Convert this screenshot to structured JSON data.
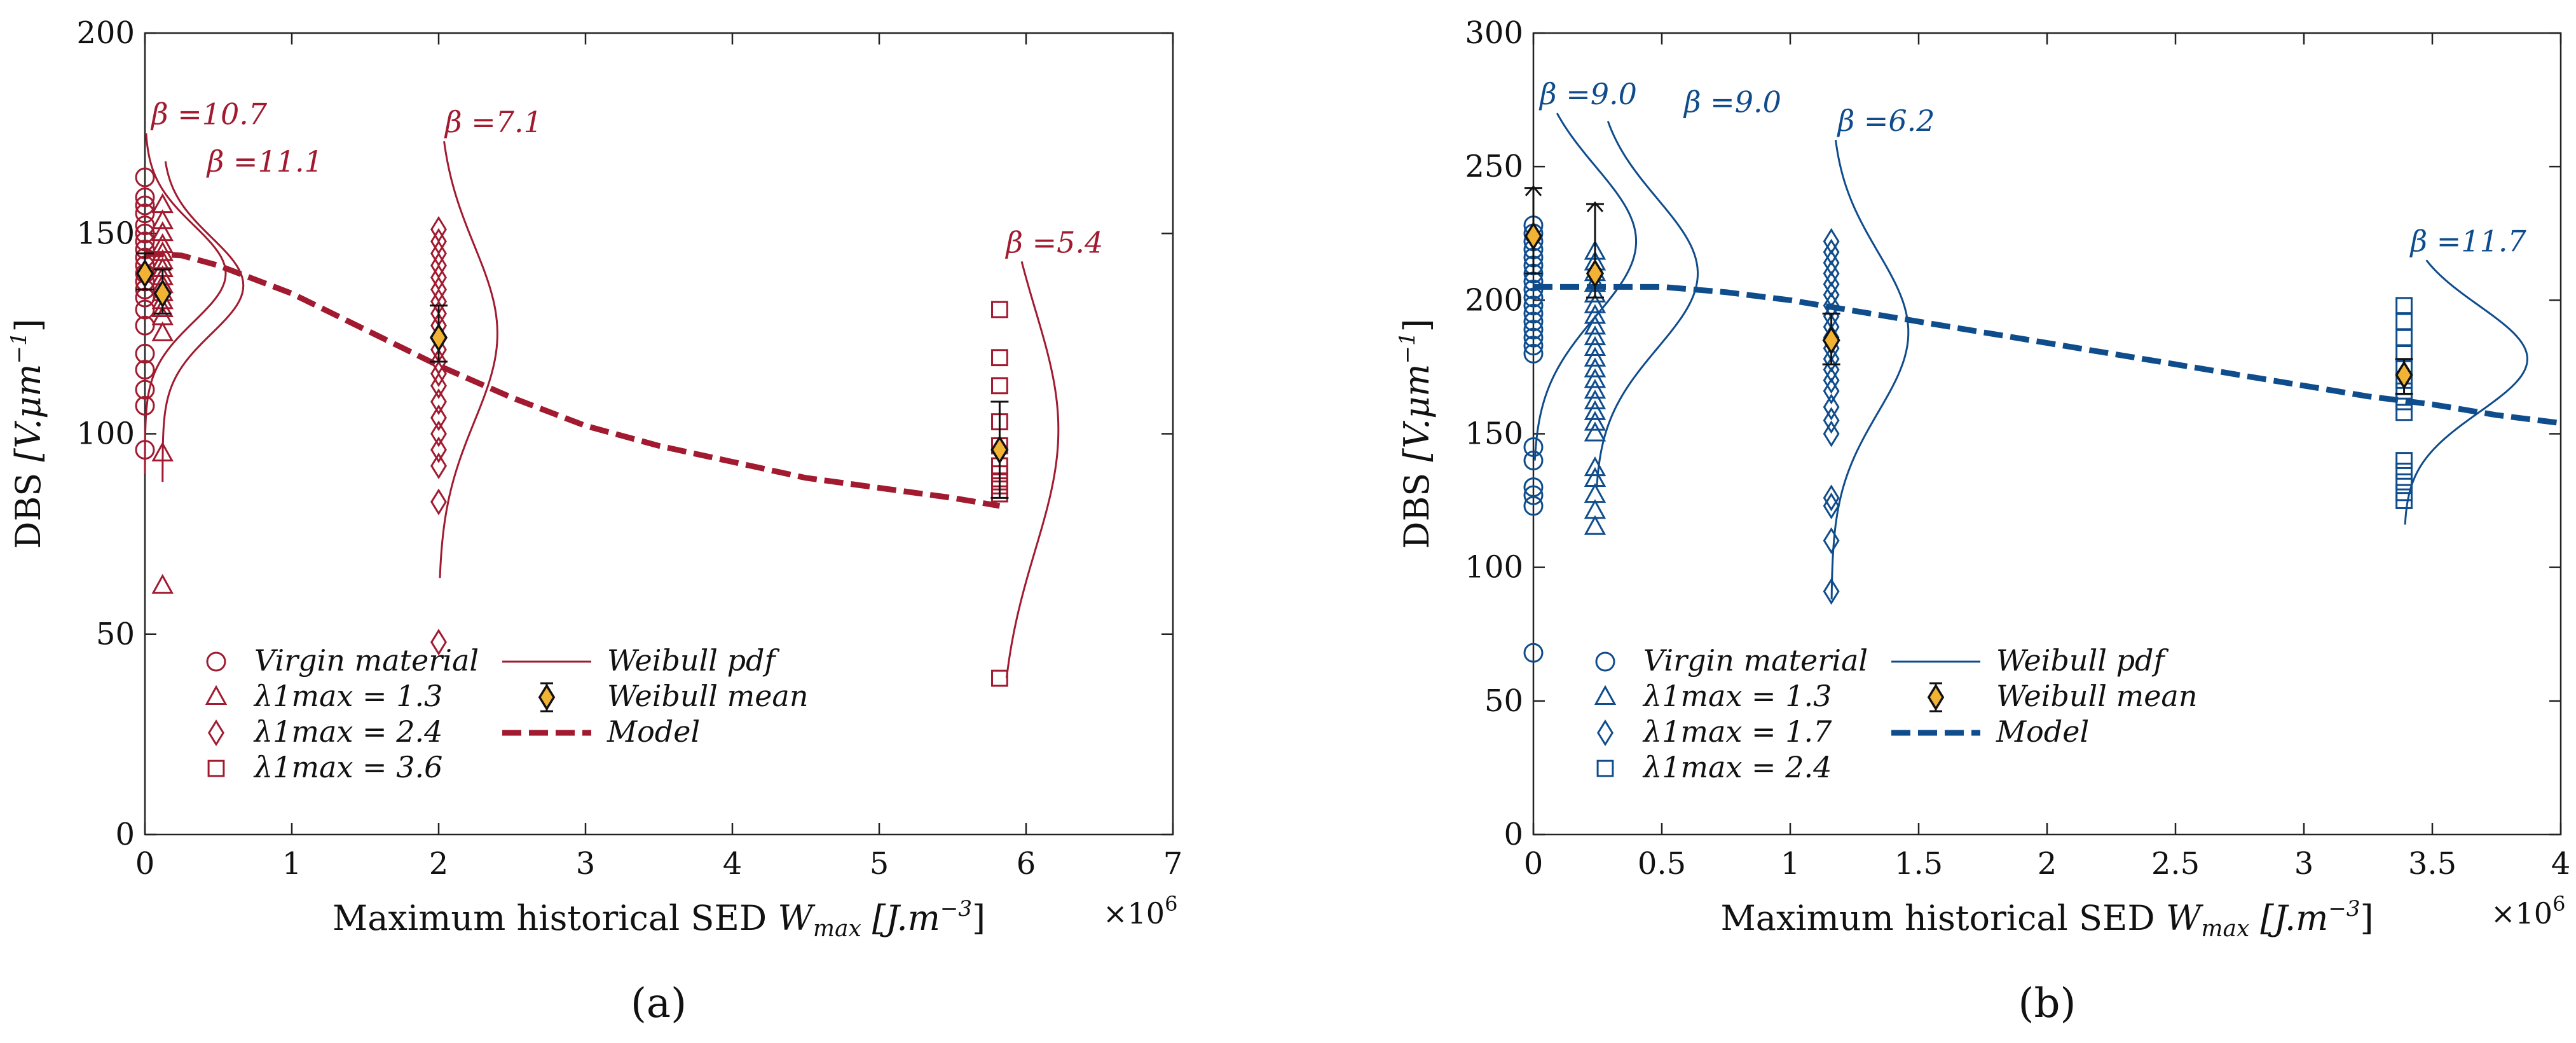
{
  "chart_data": [
    {
      "type": "scatter",
      "panel": "(a)",
      "xlabel": "Maximum historical SED",
      "xlabel_var": "W",
      "xlabel_sub": "max",
      "xlabel_unit": "[J.m",
      "xlabel_unit_exp": "−3",
      "xlabel_unit_close": "]",
      "x_multiplier": "×10",
      "x_multiplier_exp": "6",
      "ylabel": "DBS",
      "ylabel_unit": "[V.μm",
      "ylabel_unit_exp": "−1",
      "ylabel_unit_close": "]",
      "xlim": [
        0,
        7
      ],
      "ylim": [
        0,
        200
      ],
      "xticks": [
        0,
        1,
        2,
        3,
        4,
        5,
        6,
        7
      ],
      "yticks": [
        0,
        50,
        100,
        150,
        200
      ],
      "xtick_labels": [
        "0",
        "1",
        "2",
        "3",
        "4",
        "5",
        "6",
        "7"
      ],
      "ytick_labels": [
        "0",
        "50",
        "100",
        "150",
        "200"
      ],
      "grid": false,
      "color": "#a11a2f",
      "series": [
        {
          "name": "Virgin material",
          "marker": "circle",
          "x": 0,
          "values": [
            164,
            159,
            157,
            155,
            152,
            150,
            148,
            146,
            144,
            142,
            140,
            138,
            136,
            134,
            131,
            127,
            120,
            116,
            111,
            107,
            96
          ]
        },
        {
          "name": "λ1max = 1.3",
          "marker": "triangle",
          "x": 0.12,
          "values": [
            157,
            153,
            150,
            147,
            145,
            143,
            141,
            139,
            137,
            135,
            133,
            131,
            129,
            125,
            95,
            62
          ]
        },
        {
          "name": "λ1max = 2.4",
          "marker": "diamond",
          "x": 2.0,
          "values": [
            151,
            148,
            145,
            142,
            139,
            136,
            133,
            130,
            127,
            124,
            121,
            118,
            115,
            112,
            108,
            104,
            100,
            96,
            92,
            83,
            48
          ]
        },
        {
          "name": "λ1max = 3.6",
          "marker": "square",
          "x": 5.82,
          "values": [
            131,
            119,
            112,
            103,
            97,
            92,
            90,
            88,
            87,
            85,
            39
          ]
        }
      ],
      "weibull_pdf": [
        {
          "x0": 0.0,
          "beta": 10.7,
          "beta_label": "β =10.7",
          "mode": 140,
          "scale": 12,
          "width": 0.55,
          "y_from": 90,
          "y_to": 175
        },
        {
          "x0": 0.12,
          "beta": 11.1,
          "beta_label": "β =11.1",
          "mode": 137,
          "scale": 12,
          "width": 0.55,
          "y_from": 88,
          "y_to": 168
        },
        {
          "x0": 2.0,
          "beta": 7.1,
          "beta_label": "β =7.1",
          "mode": 125,
          "scale": 22,
          "width": 0.4,
          "y_from": 64,
          "y_to": 173
        },
        {
          "x0": 5.82,
          "beta": 5.4,
          "beta_label": "β =5.4",
          "mode": 101,
          "scale": 30,
          "width": 0.4,
          "y_from": 39,
          "y_to": 143
        }
      ],
      "weibull_mean": [
        {
          "x": 0.0,
          "mean": 140,
          "err_low": 136,
          "err_high": 145
        },
        {
          "x": 0.12,
          "mean": 135,
          "err_low": 130,
          "err_high": 141
        },
        {
          "x": 2.0,
          "mean": 124,
          "err_low": 118,
          "err_high": 132
        },
        {
          "x": 5.82,
          "mean": 96,
          "err_low": 84,
          "err_high": 108
        }
      ],
      "model": {
        "name": "Model",
        "x": [
          0,
          0.25,
          0.5,
          1,
          1.5,
          2,
          2.5,
          3,
          3.5,
          4,
          4.5,
          5,
          5.5,
          5.82
        ],
        "y": [
          145,
          144.5,
          142,
          135,
          126,
          117,
          109,
          102,
          97,
          93,
          89,
          86.5,
          84,
          82
        ]
      },
      "legend": {
        "placement": "lower-left",
        "col1": [
          "Virgin material",
          "λ1max = 1.3",
          "λ1max = 2.4",
          "λ1max = 3.6"
        ],
        "col2": [
          "Weibull pdf",
          "Weibull mean",
          "Model"
        ]
      }
    },
    {
      "type": "scatter",
      "panel": "(b)",
      "xlabel": "Maximum historical SED",
      "xlabel_var": "W",
      "xlabel_sub": "max",
      "xlabel_unit": "[J.m",
      "xlabel_unit_exp": "−3",
      "xlabel_unit_close": "]",
      "x_multiplier": "×10",
      "x_multiplier_exp": "6",
      "ylabel": "DBS",
      "ylabel_unit": "[V.μm",
      "ylabel_unit_exp": "−1",
      "ylabel_unit_close": "]",
      "xlim": [
        0,
        4
      ],
      "ylim": [
        0,
        300
      ],
      "xticks": [
        0,
        0.5,
        1,
        1.5,
        2,
        2.5,
        3,
        3.5,
        4
      ],
      "yticks": [
        0,
        50,
        100,
        150,
        200,
        250,
        300
      ],
      "xtick_labels": [
        "0",
        "0.5",
        "1",
        "1.5",
        "2",
        "2.5",
        "3",
        "3.5",
        "4"
      ],
      "ytick_labels": [
        "0",
        "50",
        "100",
        "150",
        "200",
        "250",
        "300"
      ],
      "grid": false,
      "color": "#0f4c8c",
      "series": [
        {
          "name": "Virgin material",
          "marker": "circle",
          "x": 0,
          "values": [
            228,
            225,
            222,
            219,
            216,
            213,
            210,
            207,
            204,
            201,
            198,
            195,
            192,
            189,
            186,
            183,
            180,
            145,
            140,
            130,
            127,
            123,
            68
          ]
        },
        {
          "name": "λ1max = 1.3",
          "marker": "triangle",
          "x": 0.24,
          "values": [
            218,
            214,
            210,
            206,
            202,
            198,
            194,
            190,
            186,
            182,
            178,
            174,
            170,
            166,
            162,
            158,
            154,
            150,
            137,
            133,
            127,
            121,
            115
          ]
        },
        {
          "name": "λ1max = 1.7",
          "marker": "diamond",
          "x": 1.16,
          "values": [
            222,
            218,
            214,
            210,
            206,
            202,
            198,
            194,
            190,
            186,
            182,
            178,
            174,
            170,
            166,
            160,
            155,
            150,
            126,
            123,
            110,
            91
          ]
        },
        {
          "name": "λ1max = 2.4",
          "marker": "square",
          "x": 3.39,
          "values": [
            198,
            192,
            186,
            180,
            175,
            170,
            166,
            162,
            158,
            140,
            136,
            132,
            128,
            125
          ]
        }
      ],
      "weibull_pdf": [
        {
          "x0": 0.0,
          "beta": 9.0,
          "beta_label": "β =9.0",
          "mode": 222,
          "scale": 28,
          "width": 0.4,
          "y_from": 140,
          "y_to": 270
        },
        {
          "x0": 0.24,
          "beta": 9.0,
          "beta_label": "β =9.0",
          "mode": 210,
          "scale": 28,
          "width": 0.4,
          "y_from": 130,
          "y_to": 267
        },
        {
          "x0": 1.16,
          "beta": 6.2,
          "beta_label": "β =6.2",
          "mode": 188,
          "scale": 30,
          "width": 0.3,
          "y_from": 88,
          "y_to": 260
        },
        {
          "x0": 3.39,
          "beta": 11.7,
          "beta_label": "β =11.7",
          "mode": 178,
          "scale": 20,
          "width": 0.48,
          "y_from": 116,
          "y_to": 215
        }
      ],
      "weibull_mean": [
        {
          "x": 0.0,
          "mean": 224,
          "err_low": 210,
          "err_high": 242,
          "upper_arrow": true
        },
        {
          "x": 0.24,
          "mean": 210,
          "err_low": 201,
          "err_high": 236,
          "upper_arrow": true
        },
        {
          "x": 1.16,
          "mean": 185,
          "err_low": 176,
          "err_high": 195
        },
        {
          "x": 3.39,
          "mean": 172,
          "err_low": 165,
          "err_high": 178
        }
      ],
      "model": {
        "name": "Model",
        "x": [
          0,
          0.25,
          0.5,
          0.75,
          1,
          1.25,
          1.5,
          1.75,
          2,
          2.25,
          2.5,
          2.75,
          3,
          3.25,
          3.5,
          3.75,
          4
        ],
        "y": [
          205,
          205,
          205,
          203,
          200,
          196,
          192,
          188,
          184,
          180,
          176,
          172,
          168,
          164,
          161,
          157,
          154
        ]
      },
      "legend": {
        "placement": "lower-left",
        "col1": [
          "Virgin material",
          "λ1max = 1.3",
          "λ1max = 1.7",
          "λ1max = 2.4"
        ],
        "col2": [
          "Weibull pdf",
          "Weibull mean",
          "Model"
        ]
      }
    }
  ],
  "mean_marker_color": "#f2b233",
  "panel_labels": [
    "(a)",
    "(b)"
  ]
}
